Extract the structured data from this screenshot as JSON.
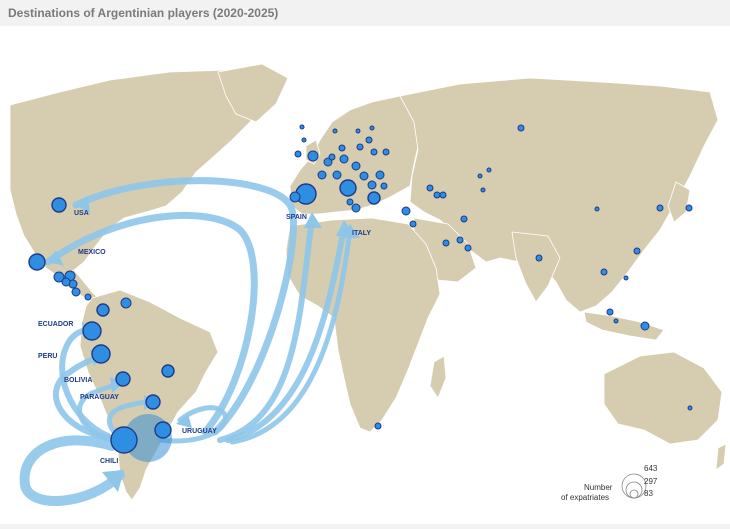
{
  "title": "Destinations of Argentinian players (2020-2025)",
  "colors": {
    "land": "#d6cdb0",
    "land_stroke": "#ffffff",
    "ocean": "#ffffff",
    "flow": "#8ec6ea",
    "bubble": "#2e8ee2",
    "bubble_stroke": "#1f3a86",
    "origin": "#3a8fd6",
    "label": "#1f3a86"
  },
  "country_labels": {
    "usa": "USA",
    "mexico": "MEXICO",
    "ecuador": "ECUADOR",
    "peru": "PERU",
    "bolivia": "BOLIVIA",
    "paraguay": "PARAGUAY",
    "uruguay": "URUGUAY",
    "chili": "CHILI",
    "spain": "SPAIN",
    "italy": "ITALY"
  },
  "legend": {
    "title_line1": "Number",
    "title_line2": "of expatriates",
    "values": [
      "643",
      "297",
      "83"
    ]
  },
  "origin_country": "Argentina",
  "flow_destinations": [
    "USA",
    "MEXICO",
    "ECUADOR",
    "PERU",
    "BOLIVIA",
    "PARAGUAY",
    "URUGUAY",
    "CHILI",
    "SPAIN",
    "ITALY"
  ]
}
